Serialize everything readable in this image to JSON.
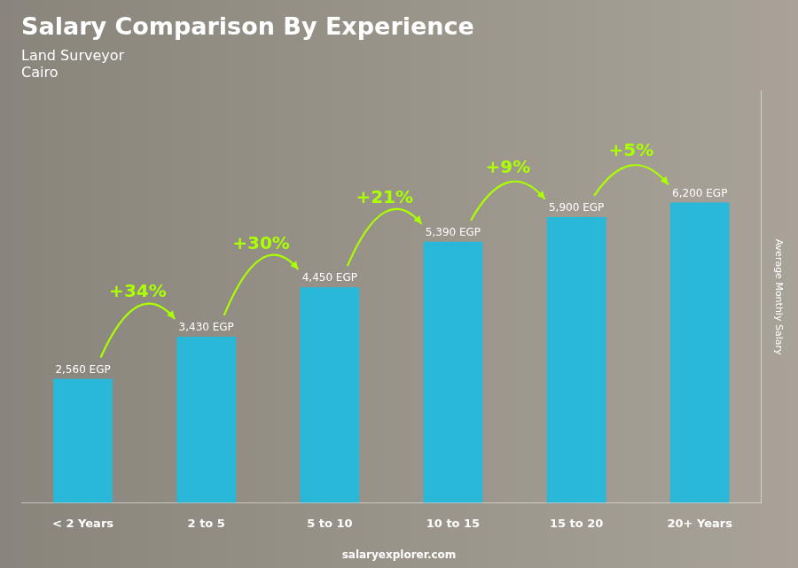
{
  "chart_data": {
    "type": "bar",
    "title": "Salary Comparison By Experience",
    "subtitle": [
      "Land Surveyor",
      "Cairo"
    ],
    "ylabel": "Average Monthly Salary",
    "footer": "salaryexplorer.com",
    "categories": [
      "< 2 Years",
      "2 to 5",
      "5 to 10",
      "10 to 15",
      "15 to 20",
      "20+ Years"
    ],
    "values": [
      2560,
      3430,
      4450,
      5390,
      5900,
      6200
    ],
    "value_labels": [
      "2,560 EGP",
      "3,430 EGP",
      "4,450 EGP",
      "5,390 EGP",
      "5,900 EGP",
      "6,200 EGP"
    ],
    "data_labels": true,
    "color": "#29b8d8",
    "ylim": [
      0,
      8500
    ],
    "yticks": [],
    "tick_labels": "x",
    "grid": false,
    "annotations": [
      {
        "from": "< 2 Years",
        "to": "2 to 5",
        "text": "+34%",
        "color": "#aaff00"
      },
      {
        "from": "2 to 5",
        "to": "5 to 10",
        "text": "+30%",
        "color": "#aaff00"
      },
      {
        "from": "5 to 10",
        "to": "10 to 15",
        "text": "+21%",
        "color": "#aaff00"
      },
      {
        "from": "10 to 15",
        "to": "15 to 20",
        "text": "+9%",
        "color": "#aaff00"
      },
      {
        "from": "15 to 20",
        "to": "20+ Years",
        "text": "+5%",
        "color": "#aaff00"
      }
    ]
  }
}
